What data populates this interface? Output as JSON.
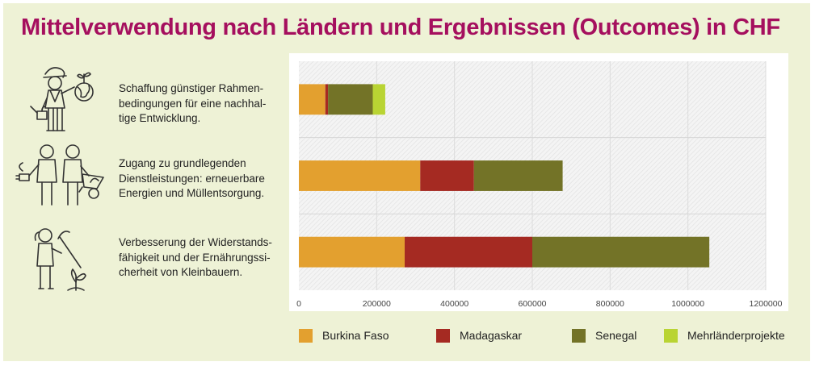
{
  "title": "Mittelverwendung nach Ländern und Ergebnissen (Outcomes) in CHF",
  "outcomes": [
    {
      "label": "Schaffung günstiger Rahmen-\nbedingungen für eine nachhal-\ntige Entwicklung.",
      "icon": "gardener-with-globe-icon"
    },
    {
      "label": "Zugang zu grundlegenden\nDienstleistungen: erneuerbare\nEnergien und Müllentsorgung.",
      "icon": "two-workers-with-wheelbarrow-icon"
    },
    {
      "label": "Verbesserung der Widerstands-\nfähigkeit und der Ernährungssi-\ncherheit von Kleinbauern.",
      "icon": "farmer-with-hoe-icon"
    }
  ],
  "colors": {
    "burkina_faso": "#e3a02f",
    "madagaskar": "#a52a22",
    "senegal": "#737327",
    "mehrlaender": "#b9d433",
    "title": "#a50f5e",
    "background": "#eef2d6"
  },
  "chart_data": {
    "type": "bar",
    "orientation": "horizontal",
    "stacked": true,
    "categories": [
      "Schaffung günstiger Rahmenbedingungen für eine nachhaltige Entwicklung.",
      "Zugang zu grundlegenden Dienstleistungen: erneuerbare Energien und Müllentsorgung.",
      "Verbesserung der Widerstandsfähigkeit und der Ernährungssicherheit von Kleinbauern."
    ],
    "series": [
      {
        "name": "Burkina Faso",
        "values": [
          68000,
          312000,
          272000
        ]
      },
      {
        "name": "Madagaskar",
        "values": [
          7000,
          138000,
          328000
        ]
      },
      {
        "name": "Senegal",
        "values": [
          115000,
          228000,
          455000
        ]
      },
      {
        "name": "Mehrländerprojekte",
        "values": [
          32000,
          0,
          0
        ]
      }
    ],
    "xlim": [
      0,
      1200000
    ],
    "xticks": [
      "0",
      "200000",
      "400000",
      "600000",
      "800000",
      "1000000",
      "1200000"
    ],
    "xtick_values": [
      0,
      200000,
      400000,
      600000,
      800000,
      1000000,
      1200000
    ],
    "legend_position": "bottom",
    "grid": "vertical"
  }
}
